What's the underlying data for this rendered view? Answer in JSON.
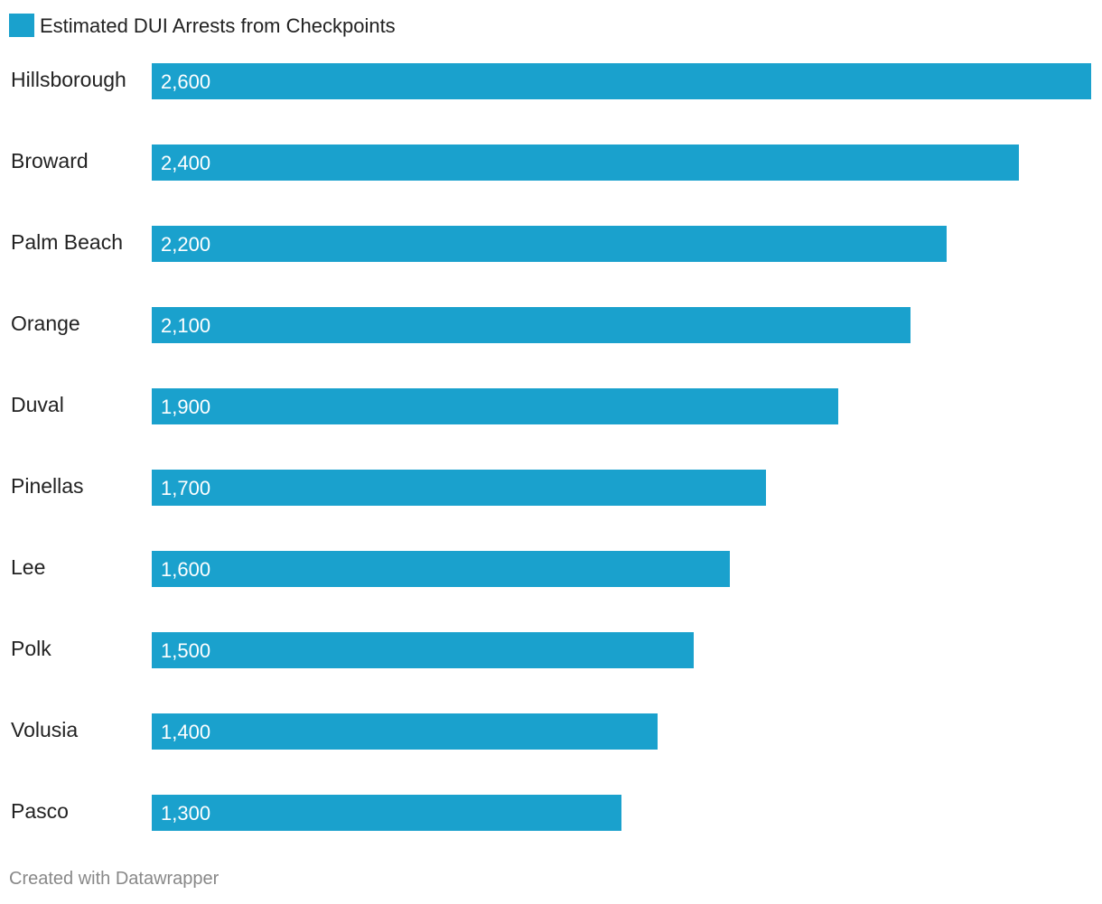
{
  "chart_data": {
    "type": "bar",
    "orientation": "horizontal",
    "categories": [
      "Hillsborough",
      "Broward",
      "Palm Beach",
      "Orange",
      "Duval",
      "Pinellas",
      "Lee",
      "Polk",
      "Volusia",
      "Pasco"
    ],
    "series": [
      {
        "name": "Estimated DUI Arrests from Checkpoints",
        "values": [
          2600,
          2400,
          2200,
          2100,
          1900,
          1700,
          1600,
          1500,
          1400,
          1300
        ],
        "labels": [
          "2,600",
          "2,400",
          "2,200",
          "2,100",
          "1,900",
          "1,700",
          "1,600",
          "1,500",
          "1,400",
          "1,300"
        ],
        "color": "#1aa1cd"
      }
    ],
    "xlim": [
      0,
      2600
    ],
    "grid": false,
    "legend": "top-left",
    "value_label_color": "#ffffff",
    "category_label_color": "#222222"
  },
  "footer": {
    "credit": "Created with Datawrapper",
    "color": "#888888"
  }
}
